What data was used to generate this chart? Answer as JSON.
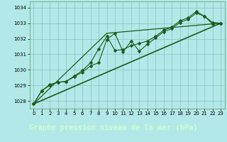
{
  "title": "Graphe pression niveau de la mer (hPa)",
  "bg_plot": "#b3e8e8",
  "bg_label": "#2d6b2d",
  "title_color": "#ccffcc",
  "line_color": "#1a5c1a",
  "grid_color": "#8fbfbf",
  "xlim": [
    -0.5,
    23.5
  ],
  "ylim": [
    1027.5,
    1034.4
  ],
  "yticks": [
    1028,
    1029,
    1030,
    1031,
    1032,
    1033,
    1034
  ],
  "xticks": [
    0,
    1,
    2,
    3,
    4,
    5,
    6,
    7,
    8,
    9,
    10,
    11,
    12,
    13,
    14,
    15,
    16,
    17,
    18,
    19,
    20,
    21,
    22,
    23
  ],
  "series1_x": [
    0,
    1,
    2,
    3,
    4,
    5,
    6,
    7,
    8,
    9,
    10,
    11,
    12,
    13,
    14,
    15,
    16,
    17,
    18,
    19,
    20,
    21,
    22,
    23
  ],
  "series1_y": [
    1027.8,
    1028.65,
    1029.0,
    1029.2,
    1029.25,
    1029.55,
    1029.85,
    1030.25,
    1030.45,
    1031.95,
    1032.35,
    1031.15,
    1031.85,
    1031.2,
    1031.65,
    1032.05,
    1032.45,
    1032.65,
    1033.05,
    1033.25,
    1033.65,
    1033.45,
    1032.95,
    1033.0
  ],
  "series2_x": [
    0,
    1,
    2,
    3,
    4,
    5,
    6,
    7,
    8,
    9,
    10,
    11,
    12,
    13,
    14,
    15,
    16,
    17,
    18,
    19,
    20,
    21,
    22,
    23
  ],
  "series2_y": [
    1027.8,
    1028.65,
    1029.05,
    1029.2,
    1029.25,
    1029.6,
    1029.95,
    1030.45,
    1031.35,
    1032.15,
    1031.25,
    1031.3,
    1031.55,
    1031.7,
    1031.85,
    1032.15,
    1032.55,
    1032.75,
    1033.15,
    1033.35,
    1033.75,
    1033.45,
    1033.05,
    1033.0
  ],
  "series3_x": [
    0,
    23
  ],
  "series3_y": [
    1027.8,
    1033.0
  ],
  "series4_x": [
    0,
    9,
    23
  ],
  "series4_y": [
    1027.8,
    1032.35,
    1033.0
  ]
}
